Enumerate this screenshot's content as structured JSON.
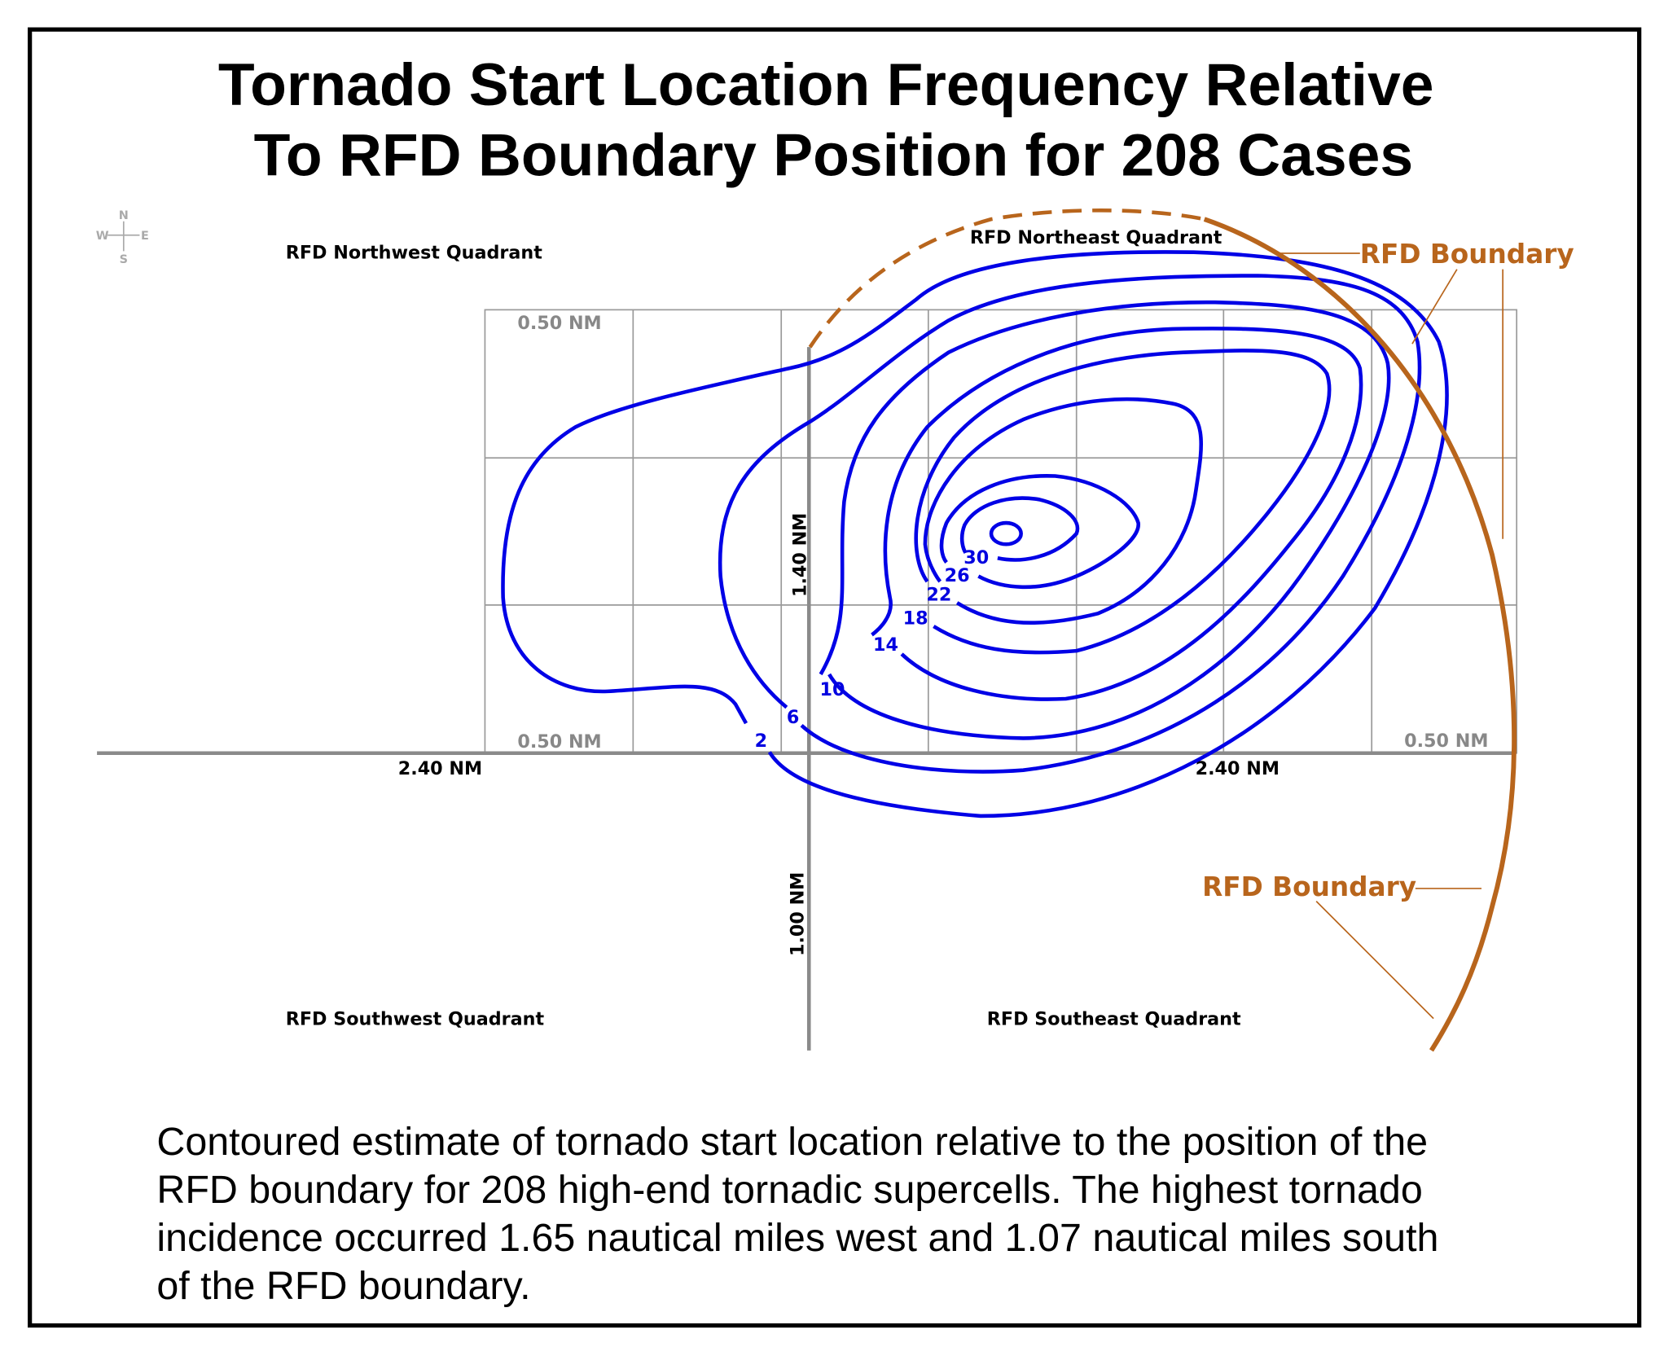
{
  "title": {
    "line1": "Tornado Start Location Frequency Relative",
    "line2": "To RFD Boundary Position for 208 Cases"
  },
  "compass": {
    "n": "N",
    "s": "S",
    "e": "E",
    "w": "W"
  },
  "quadrants": {
    "nw": "RFD Northwest Quadrant",
    "ne": "RFD Northeast Quadrant",
    "sw": "RFD Southwest Quadrant",
    "se": "RFD Southeast Quadrant"
  },
  "scale_labels": {
    "top_left": "0.50 NM",
    "bottom_left": "0.50 NM",
    "bottom_right": "0.50 NM",
    "west": "2.40 NM",
    "east": "2.40 NM",
    "north": "1.40 NM",
    "south": "1.00 NM"
  },
  "contour_labels": [
    "2",
    "6",
    "10",
    "14",
    "18",
    "22",
    "26",
    "30"
  ],
  "boundary_labels": {
    "upper": "RFD Boundary",
    "lower": "RFD Boundary"
  },
  "caption": [
    "Contoured estimate of tornado start location relative to the position of the",
    "RFD boundary for 208 high-end tornadic supercells.  The highest tornado",
    "incidence occurred 1.65 nautical miles west and 1.07 nautical miles south",
    "of the RFD boundary."
  ],
  "colors": {
    "contour": "#0000e6",
    "boundary": "#b8651c"
  }
}
